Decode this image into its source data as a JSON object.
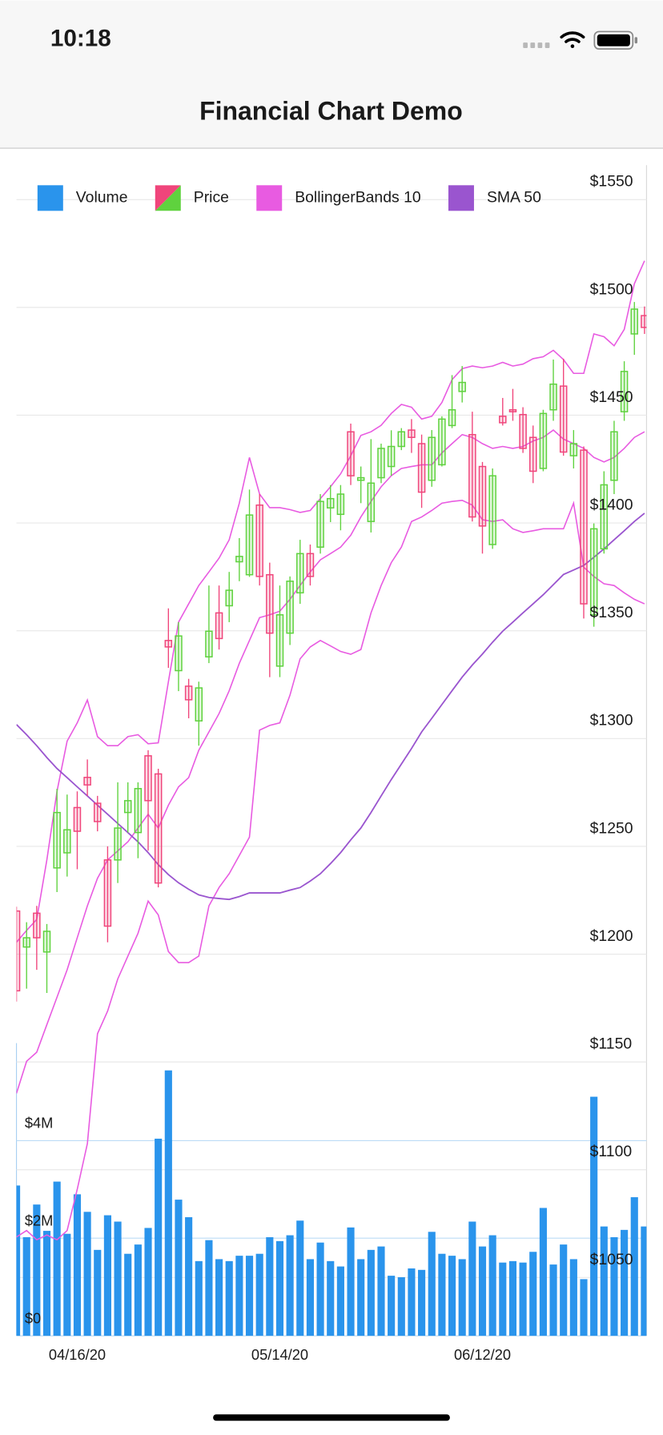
{
  "status_bar": {
    "time": "10:18"
  },
  "nav": {
    "title": "Financial Chart Demo"
  },
  "chart_data": {
    "type": "candlestick",
    "legend": "top-left",
    "grid": true,
    "categories": [
      null,
      null,
      null,
      null,
      null,
      null,
      "04/16/20",
      null,
      null,
      null,
      null,
      null,
      null,
      null,
      null,
      null,
      null,
      null,
      null,
      null,
      null,
      null,
      null,
      null,
      null,
      null,
      "05/14/20",
      null,
      null,
      null,
      null,
      null,
      null,
      null,
      null,
      null,
      null,
      null,
      null,
      null,
      null,
      null,
      null,
      null,
      null,
      null,
      "06/12/20",
      null,
      null,
      null,
      null,
      null,
      null,
      null,
      null,
      null,
      null,
      null,
      null,
      null,
      null,
      null,
      null
    ],
    "ylim": [
      1023,
      1566
    ],
    "yticks": [
      {
        "value": 1050,
        "label": "$1050"
      },
      {
        "value": 1100,
        "label": "$1100"
      },
      {
        "value": 1150,
        "label": "$1150"
      },
      {
        "value": 1200,
        "label": "$1200"
      },
      {
        "value": 1250,
        "label": "$1250"
      },
      {
        "value": 1300,
        "label": "$1300"
      },
      {
        "value": 1350,
        "label": "$1350"
      },
      {
        "value": 1400,
        "label": "$1400"
      },
      {
        "value": 1450,
        "label": "$1450"
      },
      {
        "value": 1500,
        "label": "$1500"
      },
      {
        "value": 1550,
        "label": "$1550"
      }
    ],
    "y2lim": [
      0,
      6000000
    ],
    "y2ticks": [
      {
        "value": 0,
        "label": "$0"
      },
      {
        "value": 2000000,
        "label": "$2M"
      },
      {
        "value": 4000000,
        "label": "$4M"
      }
    ],
    "series": [
      {
        "name": "Volume",
        "type": "bar",
        "axis": "y2",
        "color": "#2a94ec",
        "values": [
          3080000,
          2020000,
          2690000,
          2150000,
          3160000,
          2090000,
          2900000,
          2540000,
          1760000,
          2470000,
          2340000,
          1680000,
          1870000,
          2210000,
          4040000,
          5440000,
          2790000,
          2430000,
          1530000,
          1960000,
          1570000,
          1530000,
          1640000,
          1640000,
          1680000,
          2020000,
          1940000,
          2060000,
          2360000,
          1570000,
          1910000,
          1530000,
          1420000,
          2220000,
          1570000,
          1760000,
          1830000,
          1230000,
          1200000,
          1380000,
          1350000,
          2130000,
          1680000,
          1640000,
          1570000,
          2340000,
          1830000,
          2060000,
          1500000,
          1530000,
          1500000,
          1720000,
          2620000,
          1460000,
          1870000,
          1570000,
          1160000,
          4900000,
          2240000,
          2020000,
          2170000,
          2840000,
          2240000
        ]
      },
      {
        "name": "Price",
        "type": "candlestick",
        "up_color": "#5fd23e",
        "down_color": "#f0457b",
        "open": [
          1220,
          1203.3,
          1219,
          1201,
          1240,
          1247,
          1268,
          1282,
          1270,
          1243.7,
          1243.7,
          1265.7,
          1256.4,
          1292,
          1283.6,
          1345.5,
          1331.5,
          1324.3,
          1308.2,
          1337.9,
          1358.3,
          1361.6,
          1382,
          1376,
          1408.3,
          1376,
          1333.6,
          1348.9,
          1367.6,
          1385.8,
          1388.8,
          1407,
          1404,
          1442.3,
          1419.8,
          1400.7,
          1421,
          1426.2,
          1435.5,
          1443.1,
          1436.8,
          1419.8,
          1427,
          1445.2,
          1461,
          1441,
          1426.2,
          1390,
          1449.5,
          1452.5,
          1450.3,
          1439.7,
          1425.3,
          1452.5,
          1463.5,
          1431.2,
          1433.8,
          1357.4,
          1388,
          1419.8,
          1451.6,
          1487.7,
          1496.2
        ],
        "high": [
          1222,
          1214.8,
          1222.4,
          1214,
          1276.7,
          1274,
          1275.5,
          1290.3,
          1273.4,
          1250,
          1279.7,
          1279.7,
          1279.7,
          1294.6,
          1286,
          1360.4,
          1354,
          1327.7,
          1326.4,
          1371,
          1371,
          1377.3,
          1393,
          1415.5,
          1413.4,
          1381.6,
          1371,
          1375.2,
          1392.2,
          1390,
          1413.4,
          1417.6,
          1417.6,
          1446.1,
          1426.2,
          1438.9,
          1436.8,
          1443,
          1444,
          1448.2,
          1441,
          1443.1,
          1449.5,
          1468.6,
          1472.8,
          1451.6,
          1428.3,
          1425.3,
          1458,
          1462.2,
          1453.7,
          1445.2,
          1452.5,
          1475.8,
          1476.2,
          1443.1,
          1435.5,
          1399.8,
          1424,
          1447.4,
          1475,
          1502.5,
          1500.4
        ],
        "low": [
          1178,
          1184,
          1192.7,
          1182,
          1228.8,
          1236,
          1239.4,
          1273.4,
          1257,
          1205.5,
          1233,
          1256.4,
          1244.5,
          1248,
          1231,
          1332.8,
          1322,
          1309.4,
          1296.7,
          1335,
          1341.3,
          1354,
          1373,
          1375,
          1371,
          1328.5,
          1328.5,
          1343.4,
          1362.5,
          1371,
          1385.8,
          1400.4,
          1396.6,
          1417.6,
          1409.2,
          1395.6,
          1418.5,
          1421.9,
          1433.8,
          1432.5,
          1407,
          1416.8,
          1426.2,
          1444,
          1455.9,
          1400.7,
          1385.8,
          1388,
          1445.2,
          1447.4,
          1432.5,
          1418.5,
          1424,
          1447.4,
          1431.2,
          1425.3,
          1355.7,
          1351.9,
          1385.8,
          1413.4,
          1447.4,
          1478,
          1487.7
        ],
        "close": [
          1183,
          1207.6,
          1207.6,
          1210.6,
          1265.7,
          1257.7,
          1257,
          1278.5,
          1261.5,
          1213,
          1258.5,
          1271.2,
          1276.8,
          1271.2,
          1233,
          1342.5,
          1347.6,
          1318,
          1323.5,
          1349.8,
          1346.4,
          1368.8,
          1384.5,
          1403.7,
          1375.2,
          1348.9,
          1357.4,
          1373,
          1385.8,
          1375.2,
          1410,
          1411.3,
          1413.4,
          1421.9,
          1421,
          1418.5,
          1434.6,
          1435.5,
          1442.3,
          1439.7,
          1414.3,
          1439.7,
          1448.2,
          1452.5,
          1465.2,
          1402.8,
          1398.6,
          1421.9,
          1446.5,
          1451.6,
          1434.6,
          1424,
          1450.8,
          1464.4,
          1432.9,
          1436.8,
          1362.5,
          1397.3,
          1417.7,
          1442.3,
          1470.3,
          1499.2,
          1490.7
        ]
      },
      {
        "name": "BollingerBands 10",
        "type": "band",
        "color": "#e85be1",
        "upper": [
          1205.5,
          1211,
          1216.1,
          1243.7,
          1275.5,
          1298.8,
          1307.3,
          1317.9,
          1300.9,
          1296.7,
          1296.7,
          1300.9,
          1301.8,
          1297.6,
          1298,
          1326.4,
          1354,
          1362.5,
          1371,
          1377.3,
          1383.7,
          1392.2,
          1409.2,
          1430.4,
          1413.4,
          1407.1,
          1407.1,
          1406.2,
          1404.9,
          1405.8,
          1411.3,
          1416.8,
          1422.8,
          1431.2,
          1440.6,
          1442.3,
          1445.3,
          1450.8,
          1455,
          1453.7,
          1448.2,
          1449.5,
          1455.9,
          1466.5,
          1471.6,
          1472.8,
          1472,
          1472.8,
          1474.5,
          1472.8,
          1473.7,
          1476.2,
          1477.1,
          1480.1,
          1475.8,
          1469.4,
          1469.4,
          1487.7,
          1486.4,
          1482.2,
          1489.8,
          1511,
          1521.6
        ],
        "middle": [
          1135.4,
          1150.3,
          1154.5,
          1167.3,
          1180,
          1192.7,
          1207.6,
          1222.4,
          1235.2,
          1243.7,
          1247.9,
          1252.1,
          1258.5,
          1264.9,
          1258.5,
          1269.1,
          1277.6,
          1281.9,
          1294.6,
          1303.1,
          1311.6,
          1322.2,
          1334.9,
          1345.5,
          1356.1,
          1357.4,
          1359.1,
          1364.6,
          1371,
          1377.3,
          1382.9,
          1385.8,
          1388.8,
          1394.3,
          1402.8,
          1410,
          1416.8,
          1421.9,
          1425.3,
          1426.2,
          1427,
          1427,
          1432.5,
          1436.8,
          1441,
          1439.7,
          1436.8,
          1434.6,
          1435.5,
          1434.6,
          1435.5,
          1438,
          1439.7,
          1443.1,
          1438.9,
          1436.8,
          1434.6,
          1430.4,
          1428.3,
          1430.4,
          1434.6,
          1439.7,
          1442.3
        ],
        "lower": [
          1068.8,
          1071.8,
          1067.5,
          1069.7,
          1067.5,
          1071.8,
          1090.9,
          1112.1,
          1163.1,
          1173.6,
          1188.5,
          1199.1,
          1209.7,
          1224.6,
          1218.2,
          1201.2,
          1196.1,
          1196.1,
          1199.1,
          1222.4,
          1230.9,
          1237.3,
          1245.8,
          1254.3,
          1303.9,
          1306.1,
          1307.3,
          1320.1,
          1337,
          1342.5,
          1345.5,
          1343,
          1340.4,
          1339.1,
          1341.3,
          1358.3,
          1371,
          1381.6,
          1388.8,
          1400.7,
          1402.8,
          1405.8,
          1409.2,
          1410,
          1410.5,
          1408.3,
          1401.5,
          1400.7,
          1401.5,
          1397.3,
          1395.6,
          1396.4,
          1397.3,
          1397.3,
          1397.3,
          1409.2,
          1379.5,
          1375.2,
          1371.8,
          1371,
          1367.6,
          1364.6,
          1362.5
        ]
      },
      {
        "name": "SMA 50",
        "type": "line",
        "color": "#9a55cf",
        "values": [
          1306.5,
          1301.8,
          1296.7,
          1291.2,
          1286.1,
          1281.9,
          1277.6,
          1273.4,
          1269.1,
          1264.9,
          1260.6,
          1256.4,
          1252.1,
          1247.1,
          1241.5,
          1236.9,
          1233.1,
          1230.1,
          1227.5,
          1226.3,
          1225.8,
          1225.4,
          1226.7,
          1228.4,
          1228.4,
          1228.4,
          1228.4,
          1229.7,
          1230.9,
          1233.9,
          1237.3,
          1242,
          1247.1,
          1253,
          1258.5,
          1265.7,
          1273.4,
          1281,
          1288.2,
          1295.4,
          1303.1,
          1309.4,
          1315.8,
          1322.2,
          1328.5,
          1334.1,
          1339.2,
          1344.7,
          1349.8,
          1354,
          1358.3,
          1362.5,
          1366.7,
          1371.4,
          1376.1,
          1378.2,
          1380.3,
          1384.1,
          1388,
          1392.2,
          1396.4,
          1400.7,
          1404.5
        ]
      }
    ]
  }
}
